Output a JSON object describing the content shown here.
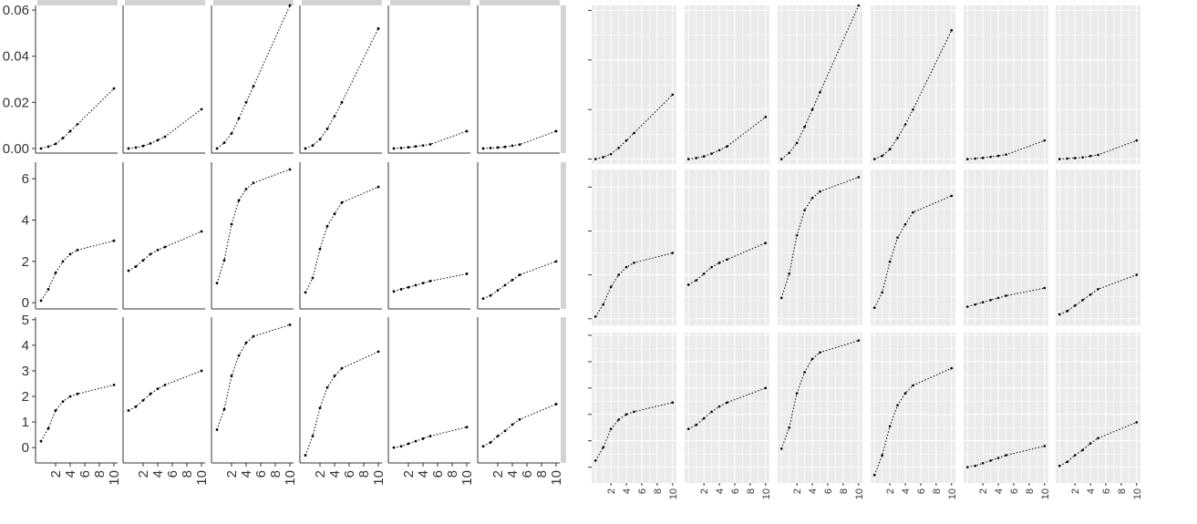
{
  "chart_data": [
    {
      "type": "line",
      "style": "classic-white-background",
      "layout": "facet-grid 3 rows x 6 columns, panels touch, y-scale free per row",
      "facet_strip_color": "#d3d3d3",
      "line_style": "dotted black with point markers",
      "x": [
        0,
        1,
        2,
        3,
        4,
        5,
        10
      ],
      "xticks": [
        2,
        4,
        6,
        8,
        10
      ],
      "rows": [
        {
          "yticks": [
            0.0,
            0.02,
            0.04,
            0.06
          ],
          "ytick_labels": [
            "0.00",
            "0.02",
            "0.04",
            "0.06"
          ],
          "ylim": [
            -0.002,
            0.062
          ],
          "panels": [
            {
              "y": [
                0.0,
                0.0008,
                0.002,
                0.0045,
                0.0075,
                0.0105,
                0.026
              ]
            },
            {
              "y": [
                0.0,
                0.0004,
                0.0011,
                0.0022,
                0.0036,
                0.0051,
                0.017
              ]
            },
            {
              "y": [
                0.0,
                0.0025,
                0.0065,
                0.013,
                0.02,
                0.027,
                0.062
              ]
            },
            {
              "y": [
                0.0,
                0.0013,
                0.004,
                0.0085,
                0.014,
                0.02,
                0.052
              ]
            },
            {
              "y": [
                0.0,
                0.0002,
                0.0005,
                0.0009,
                0.0013,
                0.0018,
                0.0075
              ]
            },
            {
              "y": [
                0.0,
                0.0002,
                0.0004,
                0.0007,
                0.0012,
                0.0017,
                0.0075
              ]
            }
          ]
        },
        {
          "yticks": [
            0,
            2,
            4,
            6
          ],
          "ytick_labels": [
            "0",
            "2",
            "4",
            "6"
          ],
          "ylim": [
            -0.3,
            6.8
          ],
          "panels": [
            {
              "y": [
                0.1,
                0.65,
                1.45,
                2.0,
                2.35,
                2.55,
                3.0
              ]
            },
            {
              "y": [
                1.55,
                1.75,
                2.05,
                2.35,
                2.55,
                2.7,
                3.45
              ]
            },
            {
              "y": [
                0.95,
                2.05,
                3.8,
                4.95,
                5.5,
                5.8,
                6.45
              ]
            },
            {
              "y": [
                0.5,
                1.2,
                2.6,
                3.7,
                4.3,
                4.85,
                5.6
              ]
            },
            {
              "y": [
                0.55,
                0.65,
                0.75,
                0.85,
                0.95,
                1.05,
                1.4
              ]
            },
            {
              "y": [
                0.2,
                0.35,
                0.6,
                0.85,
                1.1,
                1.35,
                2.0
              ]
            }
          ]
        },
        {
          "yticks": [
            0,
            1,
            2,
            3,
            4,
            5
          ],
          "ytick_labels": [
            "0",
            "1",
            "2",
            "3",
            "4",
            "5"
          ],
          "ylim": [
            -0.6,
            5.1
          ],
          "panels": [
            {
              "y": [
                0.25,
                0.75,
                1.45,
                1.8,
                2.0,
                2.1,
                2.45
              ]
            },
            {
              "y": [
                1.45,
                1.6,
                1.85,
                2.1,
                2.3,
                2.45,
                3.0
              ]
            },
            {
              "y": [
                0.7,
                1.5,
                2.8,
                3.6,
                4.1,
                4.35,
                4.8
              ]
            },
            {
              "y": [
                -0.3,
                0.45,
                1.55,
                2.35,
                2.8,
                3.1,
                3.75
              ]
            },
            {
              "y": [
                0.0,
                0.05,
                0.15,
                0.25,
                0.35,
                0.45,
                0.8
              ]
            },
            {
              "y": [
                0.05,
                0.2,
                0.45,
                0.65,
                0.9,
                1.1,
                1.7
              ]
            }
          ]
        }
      ]
    },
    {
      "type": "line",
      "style": "gray-background with white grid",
      "layout": "facet-grid 3 rows x 6 columns, panels separated, y-scale free per row",
      "panel_background": "#ebebeb",
      "grid_color": "#ffffff",
      "line_style": "dotted black with point markers",
      "same_data_as_left": true,
      "xticks": [
        2,
        4,
        6,
        8,
        10
      ]
    }
  ]
}
